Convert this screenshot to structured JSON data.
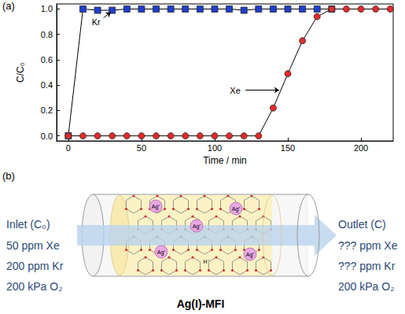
{
  "panel_labels": [
    "(a)",
    "(b)"
  ],
  "chart_data": {
    "type": "line",
    "x_label": "Time / min",
    "y_label": "C/C₀",
    "xlim": [
      -8,
      222
    ],
    "xticks": [
      0,
      50,
      100,
      150,
      200
    ],
    "ylim": [
      -0.04,
      1.04
    ],
    "yticks": [
      {
        "value": 0,
        "label": "0.0"
      },
      0.2,
      0.4,
      0.6,
      0.8,
      {
        "value": 1,
        "label": "1.0"
      }
    ],
    "grid": false,
    "series": [
      {
        "name": "Kr",
        "color": "#1f3fcf",
        "marker": "square",
        "line_style": "solid",
        "x": [
          0,
          10,
          20,
          30,
          40,
          50,
          60,
          70,
          80,
          90,
          100,
          110,
          120,
          130,
          140,
          150,
          160,
          170,
          180
        ],
        "values": [
          0,
          1.0,
          0.99,
          0.99,
          1.0,
          1.0,
          1.0,
          1.0,
          1.0,
          1.0,
          1.0,
          1.0,
          0.99,
          1.0,
          1.0,
          1.0,
          1.0,
          1.0,
          1.0
        ]
      },
      {
        "name": "Xe",
        "color": "#e52a2a",
        "marker": "circle",
        "line_style": "solid",
        "x": [
          0,
          10,
          20,
          30,
          40,
          50,
          60,
          70,
          80,
          90,
          100,
          110,
          120,
          130,
          140,
          150,
          160,
          170,
          180,
          190,
          200,
          210,
          220
        ],
        "values": [
          0,
          0,
          0,
          0,
          0,
          0,
          0,
          0,
          0,
          0,
          0,
          0,
          0,
          0,
          0.22,
          0.49,
          0.75,
          0.94,
          1.0,
          1.0,
          1.0,
          1.0,
          1.0
        ]
      }
    ],
    "annotations": [
      {
        "text": "Kr",
        "x": 19,
        "y": 0.9,
        "arrow_from": [
          24,
          0.93
        ],
        "arrow_to": [
          29,
          0.975
        ]
      },
      {
        "text": "Xe",
        "x": 114,
        "y": 0.36,
        "arrow_from": [
          121,
          0.36
        ],
        "arrow_to": [
          144,
          0.36
        ]
      }
    ]
  },
  "diagram": {
    "inlet": {
      "title": "Inlet (C₀)",
      "lines": [
        "50 ppm Xe",
        "200 ppm Kr",
        "200 kPa O₂"
      ]
    },
    "outlet": {
      "title": "Outlet (C)",
      "lines": [
        "??? ppm Xe",
        "??? ppm Kr",
        "200 kPa O₂"
      ]
    },
    "material": "Ag(I)-MFI",
    "ion_label": "Ag⁺",
    "proton_label": "H⁺"
  }
}
